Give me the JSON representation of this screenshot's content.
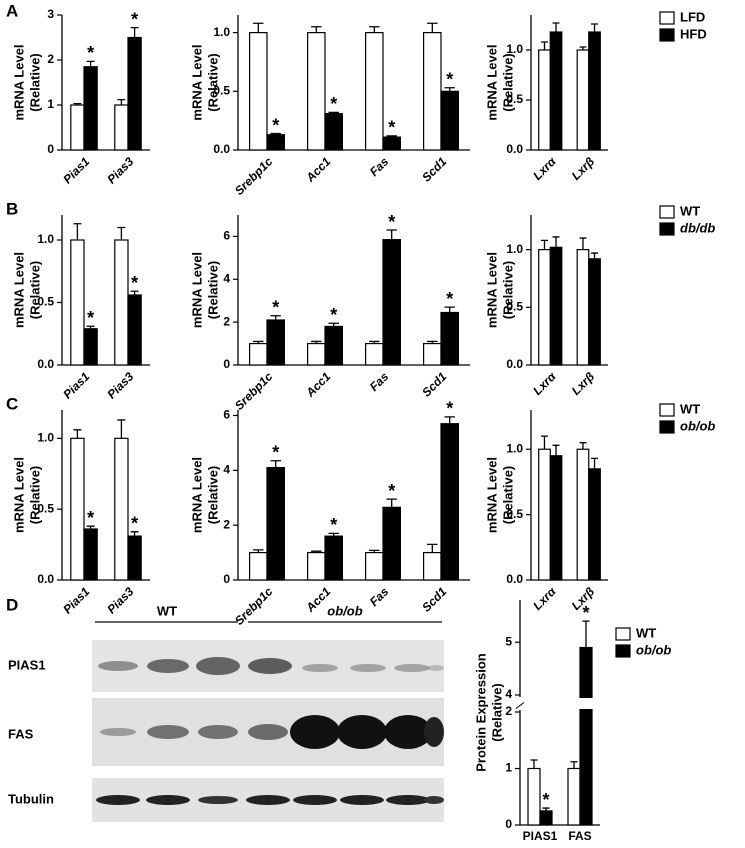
{
  "panel_labels": [
    "A",
    "B",
    "C",
    "D"
  ],
  "blot": {
    "groups": [
      "WT",
      "ob/ob"
    ],
    "rows": [
      "PIAS1",
      "FAS",
      "Tubulin"
    ]
  },
  "chart_data": [
    {
      "type": "bar",
      "ylabel_lines": [
        "mRNA Level",
        "(Relative)"
      ],
      "categories": [
        "Pias1",
        "Pias3"
      ],
      "category_italic": true,
      "category_angle": -45,
      "ylim": [
        0,
        3
      ],
      "yticks": [
        0,
        1,
        2,
        3
      ],
      "series": [
        {
          "color": "#ffffff",
          "values": [
            1.0,
            1.0
          ],
          "errors": [
            0.03,
            0.12
          ]
        },
        {
          "color": "#000000",
          "values": [
            1.85,
            2.5
          ],
          "errors": [
            0.12,
            0.22
          ],
          "markers": [
            "*",
            "*"
          ]
        }
      ]
    },
    {
      "type": "bar",
      "ylabel_lines": [
        "mRNA Level",
        "(Relative)"
      ],
      "categories": [
        "Srebp1c",
        "Acc1",
        "Fas",
        "Scd1"
      ],
      "category_italic": true,
      "category_angle": -45,
      "ylim": [
        0,
        1.15
      ],
      "yticks": [
        {
          "value": 0,
          "label": "0.0"
        },
        {
          "value": 0.5,
          "label": "0.5"
        },
        {
          "value": 1,
          "label": "1.0"
        }
      ],
      "series": [
        {
          "color": "#ffffff",
          "values": [
            1.0,
            1.0,
            1.0,
            1.0
          ],
          "errors": [
            0.08,
            0.05,
            0.05,
            0.08
          ]
        },
        {
          "color": "#000000",
          "values": [
            0.13,
            0.31,
            0.11,
            0.5
          ],
          "errors": [
            0.01,
            0.01,
            0.01,
            0.03
          ],
          "markers": [
            "*",
            "*",
            "*",
            "*"
          ]
        }
      ]
    },
    {
      "type": "bar",
      "ylabel_lines": [
        "mRNA Level",
        "(Relative)"
      ],
      "categories": [
        "Lxrα",
        "Lxrβ"
      ],
      "category_italic": true,
      "category_angle": -45,
      "ylim": [
        0,
        1.35
      ],
      "yticks": [
        {
          "value": 0,
          "label": "0.0"
        },
        {
          "value": 0.5,
          "label": "0.5"
        },
        {
          "value": 1,
          "label": "1.0"
        }
      ],
      "legend": true,
      "series": [
        {
          "name": "LFD",
          "color": "#ffffff",
          "values": [
            1.0,
            1.0
          ],
          "errors": [
            0.08,
            0.03
          ]
        },
        {
          "name": "HFD",
          "color": "#000000",
          "values": [
            1.18,
            1.18
          ],
          "errors": [
            0.09,
            0.08
          ]
        }
      ]
    },
    {
      "type": "bar",
      "ylabel_lines": [
        "mRNA Level",
        "(Relative)"
      ],
      "categories": [
        "Pias1",
        "Pias3"
      ],
      "category_italic": true,
      "category_angle": -45,
      "ylim": [
        0,
        1.2
      ],
      "yticks": [
        {
          "value": 0,
          "label": "0.0"
        },
        {
          "value": 0.5,
          "label": "0.5"
        },
        {
          "value": 1,
          "label": "1.0"
        }
      ],
      "series": [
        {
          "color": "#ffffff",
          "values": [
            1.0,
            1.0
          ],
          "errors": [
            0.13,
            0.1
          ]
        },
        {
          "color": "#000000",
          "values": [
            0.29,
            0.56
          ],
          "errors": [
            0.02,
            0.03
          ],
          "markers": [
            "*",
            "*"
          ]
        }
      ]
    },
    {
      "type": "bar",
      "ylabel_lines": [
        "mRNA Level",
        "(Relative)"
      ],
      "categories": [
        "Srebp1c",
        "Acc1",
        "Fas",
        "Scd1"
      ],
      "category_italic": true,
      "category_angle": -45,
      "ylim": [
        0,
        7
      ],
      "yticks": [
        0,
        2,
        4,
        6
      ],
      "series": [
        {
          "color": "#ffffff",
          "values": [
            1.0,
            1.0,
            1.0,
            1.0
          ],
          "errors": [
            0.1,
            0.1,
            0.1,
            0.1
          ]
        },
        {
          "color": "#000000",
          "values": [
            2.1,
            1.8,
            5.85,
            2.45
          ],
          "errors": [
            0.2,
            0.15,
            0.45,
            0.25
          ],
          "markers": [
            "*",
            "*",
            "*",
            "*"
          ]
        }
      ]
    },
    {
      "type": "bar",
      "ylabel_lines": [
        "mRNA Level",
        "(Relative)"
      ],
      "categories": [
        "Lxrα",
        "Lxrβ"
      ],
      "category_italic": true,
      "category_angle": -45,
      "ylim": [
        0,
        1.3
      ],
      "yticks": [
        {
          "value": 0,
          "label": "0.0"
        },
        {
          "value": 0.5,
          "label": "0.5"
        },
        {
          "value": 1,
          "label": "1.0"
        }
      ],
      "legend": true,
      "series": [
        {
          "name": "WT",
          "color": "#ffffff",
          "values": [
            1.0,
            1.0
          ],
          "errors": [
            0.08,
            0.1
          ]
        },
        {
          "name": "db/db",
          "italic": true,
          "color": "#000000",
          "values": [
            1.02,
            0.92
          ],
          "errors": [
            0.09,
            0.05
          ]
        }
      ]
    },
    {
      "type": "bar",
      "ylabel_lines": [
        "mRNA Level",
        "(Relative)"
      ],
      "categories": [
        "Pias1",
        "Pias3"
      ],
      "category_italic": true,
      "category_angle": -45,
      "ylim": [
        0,
        1.2
      ],
      "yticks": [
        {
          "value": 0,
          "label": "0.0"
        },
        {
          "value": 0.5,
          "label": "0.5"
        },
        {
          "value": 1,
          "label": "1.0"
        }
      ],
      "series": [
        {
          "color": "#ffffff",
          "values": [
            1.0,
            1.0
          ],
          "errors": [
            0.06,
            0.13
          ]
        },
        {
          "color": "#000000",
          "values": [
            0.36,
            0.31
          ],
          "errors": [
            0.02,
            0.03
          ],
          "markers": [
            "*",
            "*"
          ]
        }
      ]
    },
    {
      "type": "bar",
      "ylabel_lines": [
        "mRNA Level",
        "(Relative)"
      ],
      "categories": [
        "Srebp1c",
        "Acc1",
        "Fas",
        "Scd1"
      ],
      "category_italic": true,
      "category_angle": -45,
      "ylim": [
        0,
        6.2
      ],
      "yticks": [
        0,
        2,
        4,
        6
      ],
      "series": [
        {
          "color": "#ffffff",
          "values": [
            1.0,
            1.0,
            1.0,
            1.0
          ],
          "errors": [
            0.1,
            0.05,
            0.08,
            0.3
          ]
        },
        {
          "color": "#000000",
          "values": [
            4.1,
            1.6,
            2.65,
            5.7
          ],
          "errors": [
            0.25,
            0.1,
            0.3,
            0.25
          ],
          "markers": [
            "*",
            "*",
            "*",
            "*"
          ]
        }
      ]
    },
    {
      "type": "bar",
      "ylabel_lines": [
        "mRNA Level",
        "(Relative)"
      ],
      "categories": [
        "Lxrα",
        "Lxrβ"
      ],
      "category_italic": true,
      "category_angle": -45,
      "ylim": [
        0,
        1.3
      ],
      "yticks": [
        {
          "value": 0,
          "label": "0.0"
        },
        {
          "value": 0.5,
          "label": "0.5"
        },
        {
          "value": 1,
          "label": "1.0"
        }
      ],
      "legend": true,
      "series": [
        {
          "name": "WT",
          "color": "#ffffff",
          "values": [
            1.0,
            1.0
          ],
          "errors": [
            0.1,
            0.05
          ]
        },
        {
          "name": "ob/ob",
          "italic": true,
          "color": "#000000",
          "values": [
            0.95,
            0.85
          ],
          "errors": [
            0.08,
            0.08
          ]
        }
      ]
    },
    {
      "type": "bar",
      "ylabel_lines": [
        "Protein Expression",
        "(Relative)"
      ],
      "categories": [
        "PIAS1",
        "FAS"
      ],
      "category_italic": false,
      "category_angle": 0,
      "ylim": [
        0,
        5.8
      ],
      "ybreak": [
        2,
        4
      ],
      "yticks": [
        0,
        1,
        2,
        4,
        5
      ],
      "legend": true,
      "series": [
        {
          "name": "WT",
          "color": "#ffffff",
          "values": [
            1.0,
            1.0
          ],
          "errors": [
            0.15,
            0.12
          ]
        },
        {
          "name": "ob/ob",
          "italic": true,
          "color": "#000000",
          "values": [
            0.25,
            4.9
          ],
          "errors": [
            0.05,
            0.5
          ],
          "markers": [
            "*",
            "*"
          ]
        }
      ]
    }
  ]
}
